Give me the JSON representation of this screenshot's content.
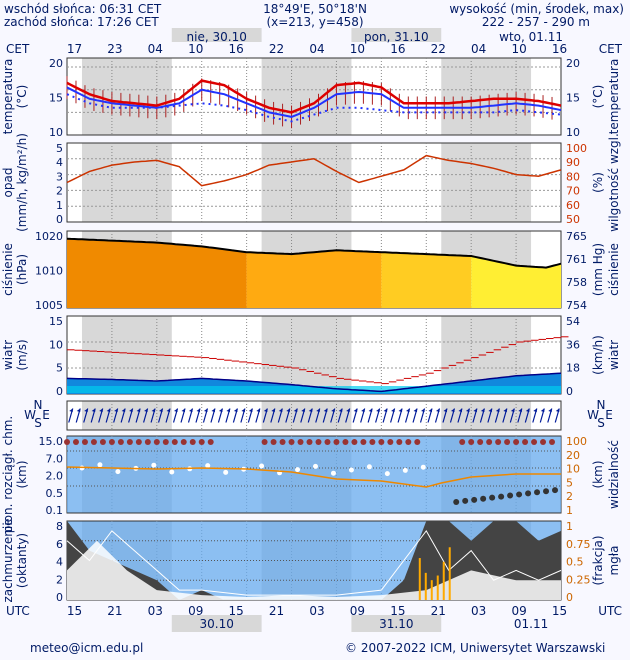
{
  "header": {
    "sunrise": "wschód słońca: 06:31 CET",
    "sunset": "zachód słońca: 17:26 CET",
    "coords": "18°49'E, 50°18'N",
    "grid": "(x=213,  y=458)",
    "elev_title": "wysokość (min, środek, max)",
    "elev_values": "222 - 257 - 290 m"
  },
  "time_axis": {
    "top_tz": "CET",
    "top_hours": [
      "17",
      "23",
      "04",
      "10",
      "16",
      "22",
      "04",
      "10",
      "16",
      "22",
      "04",
      "10",
      "16"
    ],
    "top_days": [
      "nie, 30.10",
      "pon, 31.10",
      "wto, 01.11"
    ],
    "bottom_tz": "UTC",
    "bottom_hours": [
      "15",
      "21",
      "03",
      "09",
      "15",
      "21",
      "03",
      "09",
      "15",
      "21",
      "03",
      "09",
      "15"
    ],
    "bottom_days": [
      "30.10",
      "31.10",
      "01.11"
    ]
  },
  "panels": {
    "temperature": {
      "left_label": [
        "temperatura",
        "(°C)"
      ],
      "right_label": [
        "temperatura",
        "(°C)"
      ],
      "ticks": [
        "20",
        "15",
        "10"
      ]
    },
    "precip": {
      "left_label": [
        "opad",
        "(mm/h, kg/m²/h)"
      ],
      "right_label": [
        "wilgotność wzgl.",
        "(%)"
      ],
      "left_ticks": [
        "5",
        "4",
        "3",
        "2",
        "1",
        "0"
      ],
      "right_ticks": [
        "100",
        "90",
        "80",
        "70",
        "60",
        "50"
      ]
    },
    "pressure": {
      "left_label": [
        "ciśnienie",
        "(hPa)"
      ],
      "right_label": [
        "ciśnienie",
        "(mm Hg)"
      ],
      "left_ticks": [
        "1020",
        "1010",
        "1005"
      ],
      "right_ticks": [
        "765",
        "761",
        "758",
        "754"
      ]
    },
    "wind": {
      "left_label": [
        "wiatr",
        "(m/s)"
      ],
      "right_label": [
        "wiatr",
        "(km/h)"
      ],
      "left_ticks": [
        "15",
        "10",
        "5",
        "0"
      ],
      "right_ticks": [
        "54",
        "36",
        "18",
        "0"
      ]
    },
    "direction": {
      "compass_n": "N",
      "compass_s": "S",
      "compass_w": "W",
      "compass_e": "E"
    },
    "cloud_base": {
      "left_label": [
        "pion. rozciągł. chm.",
        "(km)"
      ],
      "right_label": [
        "widzialność",
        "(km)"
      ],
      "left_ticks": [
        "15.0",
        "7.0",
        "2.0",
        "0.5",
        "0.1"
      ],
      "right_ticks": [
        "100",
        "20",
        "10",
        "5",
        "2",
        "1"
      ]
    },
    "clouds": {
      "left_label": [
        "zachmurzenie",
        "(oktanty)"
      ],
      "right_label": [
        "mgła",
        "(frakcja)"
      ],
      "left_ticks": [
        "8",
        "6",
        "4",
        "2",
        "0"
      ],
      "right_ticks": [
        "1",
        "0.75",
        "0.5",
        "0.25",
        "0"
      ]
    }
  },
  "footer": {
    "email": "meteo@icm.edu.pl",
    "copyright": "© 2007-2022 ICM, Uniwersytet Warszawski"
  },
  "colors": {
    "text": "#001a66",
    "temp": "#dd0000",
    "dew": "#2233ff",
    "humidity": "#cc3300",
    "pressure_fill": "#ff9900",
    "wind": "#cc0000",
    "sky": "#66aaee"
  },
  "chart_data": [
    {
      "type": "line",
      "name": "temperature",
      "x": [
        0,
        3,
        6,
        9,
        12,
        15,
        18,
        21,
        24,
        27,
        30,
        33,
        36,
        39,
        42,
        45,
        48,
        51,
        54,
        57,
        60,
        63,
        66
      ],
      "series": [
        {
          "values": [
            16.5,
            14,
            12.5,
            12,
            11.5,
            13,
            17,
            16,
            13,
            11,
            10,
            12,
            16,
            16.5,
            15.5,
            12,
            12,
            12,
            12.5,
            13,
            13,
            12.5,
            11.5
          ]
        },
        {
          "values": [
            15.5,
            13,
            12,
            11.5,
            11,
            12,
            15,
            14,
            12,
            10,
            9,
            11,
            14,
            14.5,
            14,
            11,
            11,
            11,
            11,
            11.5,
            12,
            11.5,
            10.5
          ]
        },
        {
          "values": [
            14,
            12,
            11,
            11,
            11,
            11.5,
            12,
            11.5,
            10.5,
            9,
            8,
            9.5,
            11,
            11,
            10.5,
            10,
            10,
            10,
            10,
            10,
            10.5,
            10,
            9.5
          ]
        }
      ],
      "ylim": [
        5,
        22
      ]
    },
    {
      "type": "line",
      "name": "humidity",
      "x": [
        0,
        3,
        6,
        9,
        12,
        15,
        18,
        21,
        24,
        27,
        30,
        33,
        36,
        39,
        42,
        45,
        48,
        51,
        54,
        57,
        60,
        63,
        66
      ],
      "values": [
        75,
        82,
        86,
        88,
        89,
        85,
        73,
        76,
        80,
        86,
        88,
        90,
        82,
        75,
        79,
        83,
        92,
        89,
        87,
        84,
        80,
        79,
        83
      ],
      "ylim": [
        50,
        100
      ]
    },
    {
      "type": "area",
      "name": "pressure",
      "x": [
        0,
        6,
        12,
        18,
        24,
        30,
        36,
        42,
        48,
        54,
        60,
        64,
        66
      ],
      "values": [
        1023,
        1022.5,
        1022,
        1021,
        1019.5,
        1019,
        1020,
        1019.5,
        1019,
        1018.5,
        1016,
        1015.5,
        1016.5
      ],
      "ylim": [
        1005,
        1025
      ]
    },
    {
      "type": "area",
      "name": "wind",
      "x": [
        0,
        6,
        12,
        18,
        24,
        30,
        36,
        42,
        48,
        54,
        60,
        66
      ],
      "series": [
        {
          "values": [
            3,
            2.8,
            2.5,
            3,
            2.5,
            1.8,
            1,
            0.5,
            1.5,
            2.5,
            3.5,
            4
          ]
        },
        {
          "values": [
            8.5,
            8,
            7.5,
            7,
            6,
            5,
            3,
            2,
            4,
            7,
            10,
            11
          ]
        }
      ],
      "ylim": [
        0,
        15
      ]
    }
  ]
}
